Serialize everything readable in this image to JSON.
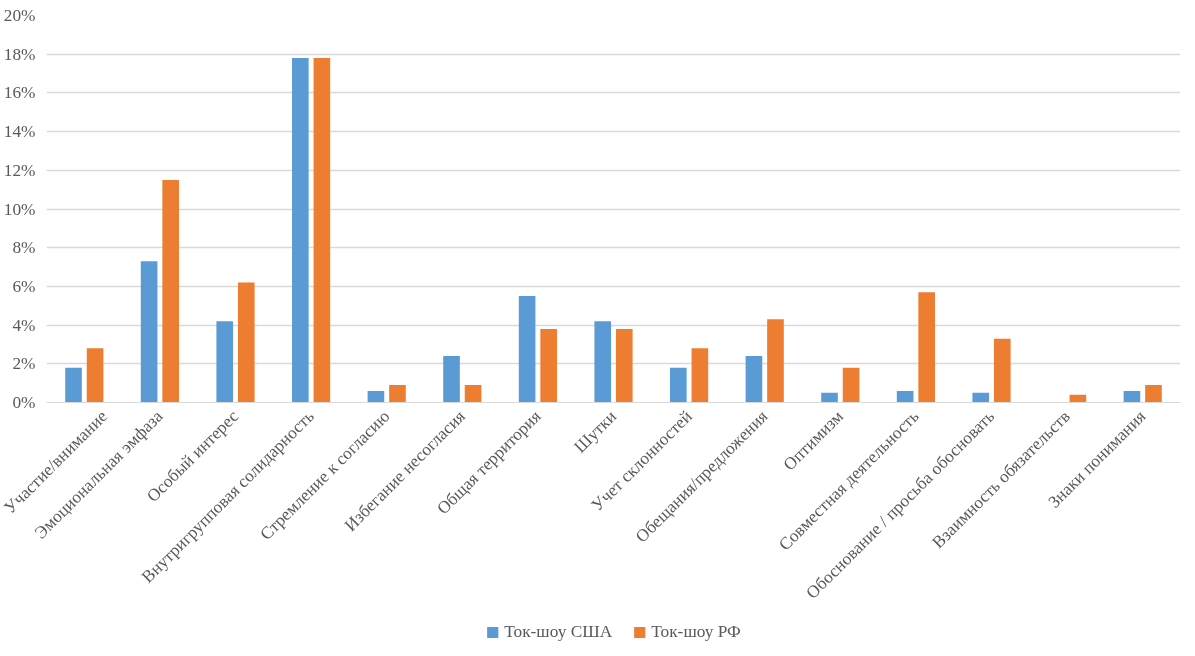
{
  "chart_data": {
    "type": "bar",
    "categories": [
      "Участие/внимание",
      "Эмоциональная эмфаза",
      "Особый интерес",
      "Внутригрупповая солидарность",
      "Стремление к согласию",
      "Избегание несогласия",
      "Общая территория",
      "Шутки",
      "Учет склонностей",
      "Обещания/предложения",
      "Оптимизм",
      "Совместная деятельность",
      "Обоснование / просьба обосновать",
      "Взаимность обязательств",
      "Знаки понимания"
    ],
    "series": [
      {
        "name": "Ток-шоу США",
        "color": "#5b9bd5",
        "values": [
          1.8,
          7.3,
          4.2,
          17.8,
          0.6,
          2.4,
          5.5,
          4.2,
          1.8,
          2.4,
          0.5,
          0.6,
          0.5,
          0,
          0.6
        ]
      },
      {
        "name": "Ток-шоу РФ",
        "color": "#ed7d31",
        "values": [
          2.8,
          11.5,
          6.2,
          17.8,
          0.9,
          0.9,
          3.8,
          3.8,
          2.8,
          4.3,
          1.8,
          5.7,
          3.3,
          0.4,
          0.9
        ]
      }
    ],
    "ylim": [
      0,
      20
    ],
    "yticks": [
      {
        "value": 0,
        "label": "0%"
      },
      {
        "value": 2,
        "label": "2%"
      },
      {
        "value": 4,
        "label": "4%"
      },
      {
        "value": 6,
        "label": "6%"
      },
      {
        "value": 8,
        "label": "8%"
      },
      {
        "value": 10,
        "label": "10%"
      },
      {
        "value": 12,
        "label": "12%"
      },
      {
        "value": 14,
        "label": "14%"
      },
      {
        "value": 16,
        "label": "16%"
      },
      {
        "value": 18,
        "label": "18%"
      },
      {
        "value": 20,
        "label": "20%"
      }
    ],
    "grid": "y",
    "legend": "bottom"
  }
}
